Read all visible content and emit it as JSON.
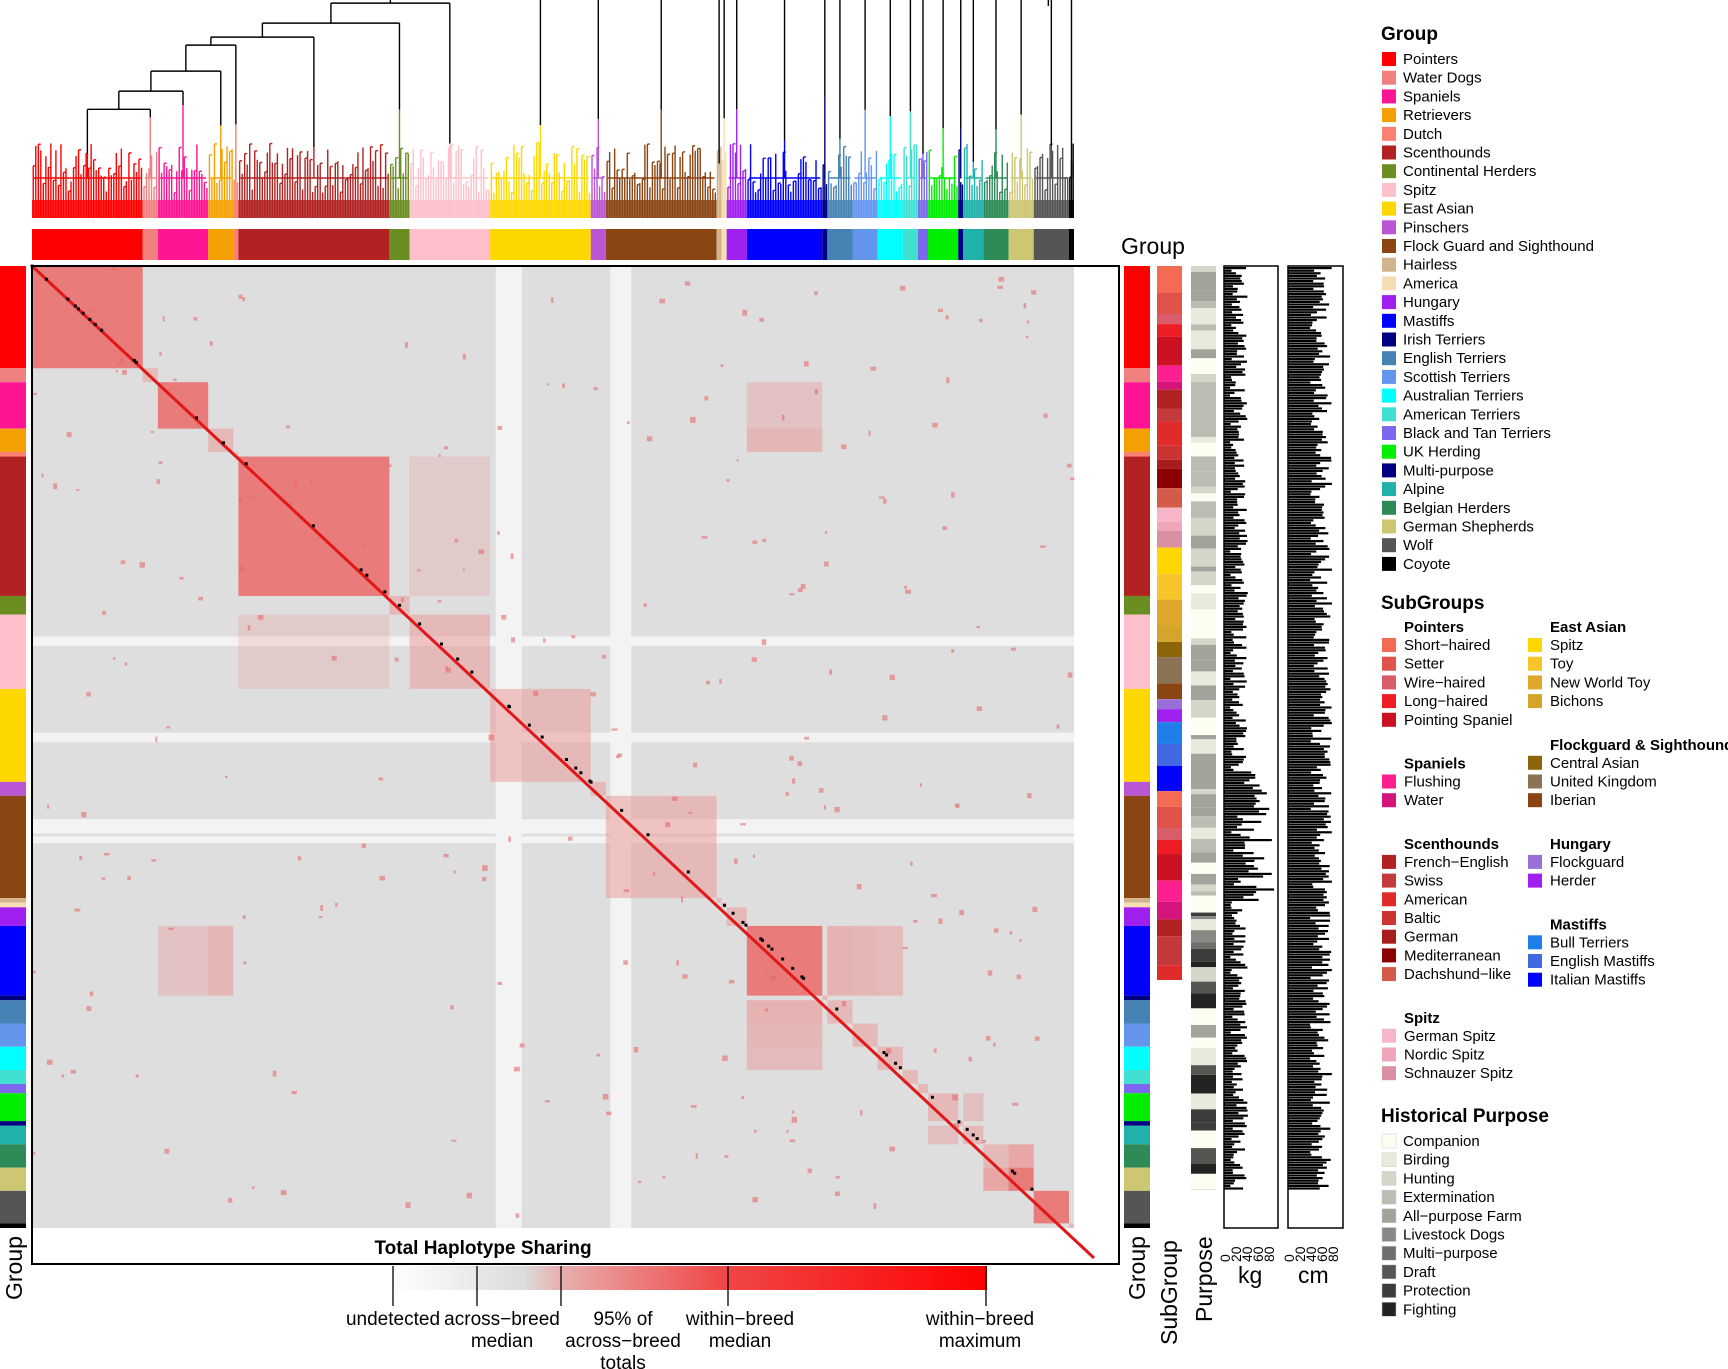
{
  "chart_data": {
    "type": "heatmap",
    "title": "Total Haplotype Sharing",
    "row_label": "Group",
    "top_label": "Group",
    "side_labels": {
      "group": "Group",
      "subgroup": "SubGroup",
      "purpose": "Purpose",
      "kg": "kg",
      "cm": "cm"
    },
    "kg_ticks": [
      "0",
      "20",
      "40",
      "60",
      "80"
    ],
    "cm_ticks": [
      "0",
      "20",
      "40",
      "60",
      "80"
    ],
    "colorbar": {
      "labels": [
        {
          "text": "undetected",
          "lines": [
            "undetected"
          ]
        },
        {
          "text": "across-breed median",
          "lines": [
            "across−breed",
            "median"
          ]
        },
        {
          "text": "95% of across-breed totals",
          "lines": [
            "95% of",
            "across−breed",
            "totals"
          ]
        },
        {
          "text": "within-breed median",
          "lines": [
            "within−breed",
            "median"
          ]
        },
        {
          "text": "within-breed maximum",
          "lines": [
            "within−breed",
            "maximum"
          ]
        }
      ]
    },
    "groups": [
      {
        "name": "Pointers",
        "color": "#ff0000",
        "size": 22
      },
      {
        "name": "Water Dogs",
        "color": "#f08080",
        "size": 3
      },
      {
        "name": "Spaniels",
        "color": "#ff1493",
        "size": 10
      },
      {
        "name": "Retrievers",
        "color": "#f4a000",
        "size": 5
      },
      {
        "name": "Dutch",
        "color": "#fa8072",
        "size": 1
      },
      {
        "name": "Scenthounds",
        "color": "#b22222",
        "size": 30
      },
      {
        "name": "Continental Herders",
        "color": "#6b8e23",
        "size": 4
      },
      {
        "name": "Spitz",
        "color": "#ffc0cb",
        "size": 16
      },
      {
        "name": "East Asian",
        "color": "#ffd700",
        "size": 20
      },
      {
        "name": "Pinschers",
        "color": "#ba55d3",
        "size": 3
      },
      {
        "name": "Flock Guard and Sighthound",
        "color": "#8b4513",
        "size": 22
      },
      {
        "name": "Hairless",
        "color": "#d2b48c",
        "size": 1
      },
      {
        "name": "America",
        "color": "#f5deb3",
        "size": 1
      },
      {
        "name": "Hungary",
        "color": "#a020f0",
        "size": 4
      },
      {
        "name": "Mastiffs",
        "color": "#0000ff",
        "size": 15
      },
      {
        "name": "Irish Terriers",
        "color": "#000080",
        "size": 1
      },
      {
        "name": "English Terriers",
        "color": "#4682b4",
        "size": 5
      },
      {
        "name": "Scottish Terriers",
        "color": "#6495ed",
        "size": 5
      },
      {
        "name": "Australian Terriers",
        "color": "#00ffff",
        "size": 5
      },
      {
        "name": "American Terriers",
        "color": "#40e0d0",
        "size": 3
      },
      {
        "name": "Black and Tan Terriers",
        "color": "#7b68ee",
        "size": 2
      },
      {
        "name": "UK Herding",
        "color": "#00ee00",
        "size": 6
      },
      {
        "name": "Multi-purpose",
        "color": "#000080",
        "size": 1
      },
      {
        "name": "Alpine",
        "color": "#20b2aa",
        "size": 4
      },
      {
        "name": "Belgian Herders",
        "color": "#2e8b57",
        "size": 5
      },
      {
        "name": "German Shepherds",
        "color": "#cdc673",
        "size": 5
      },
      {
        "name": "Wolf",
        "color": "#555555",
        "size": 7
      },
      {
        "name": "Coyote",
        "color": "#000000",
        "size": 1
      }
    ]
  },
  "legend": {
    "group_title": "Group",
    "subgroups_title": "SubGroups",
    "subgroups_left": [
      {
        "title": "Pointers",
        "items": [
          {
            "label": "Short−haired",
            "color": "#f26b52"
          },
          {
            "label": "Setter",
            "color": "#e0524a"
          },
          {
            "label": "Wire−haired",
            "color": "#d95c6a"
          },
          {
            "label": "Long−haired",
            "color": "#ee1c25"
          },
          {
            "label": "Pointing Spaniel",
            "color": "#cc1122"
          }
        ]
      },
      {
        "title": "Spaniels",
        "items": [
          {
            "label": "Flushing",
            "color": "#ff1f8e"
          },
          {
            "label": "Water",
            "color": "#d6157c"
          }
        ]
      },
      {
        "title": "Scenthounds",
        "items": [
          {
            "label": "French−English",
            "color": "#b22222"
          },
          {
            "label": "Swiss",
            "color": "#c43a3a"
          },
          {
            "label": "American",
            "color": "#e02b2b"
          },
          {
            "label": "Baltic",
            "color": "#cc3333"
          },
          {
            "label": "German",
            "color": "#a81c1c"
          },
          {
            "label": "Mediterranean",
            "color": "#8b0000"
          },
          {
            "label": "Dachshund−like",
            "color": "#d45a4a"
          }
        ]
      },
      {
        "title": "Spitz",
        "items": [
          {
            "label": "German Spitz",
            "color": "#f7b6c8"
          },
          {
            "label": "Nordic Spitz",
            "color": "#eea6b8"
          },
          {
            "label": "Schnauzer Spitz",
            "color": "#d990a2"
          }
        ]
      }
    ],
    "subgroups_right": [
      {
        "title": "East Asian",
        "items": [
          {
            "label": "Spitz",
            "color": "#ffd700"
          },
          {
            "label": "Toy",
            "color": "#f7c42a"
          },
          {
            "label": "New World Toy",
            "color": "#e0a82a"
          },
          {
            "label": "Bichons",
            "color": "#d4a52a"
          }
        ]
      },
      {
        "title": "Flockguard & Sighthounds",
        "items": [
          {
            "label": "Central Asian",
            "color": "#8b6508"
          },
          {
            "label": "United Kingdom",
            "color": "#8b7355"
          },
          {
            "label": "Iberian",
            "color": "#8b4513"
          }
        ]
      },
      {
        "title": "Hungary",
        "items": [
          {
            "label": "Flockguard",
            "color": "#9a70d8"
          },
          {
            "label": "Herder",
            "color": "#a020f0"
          }
        ]
      },
      {
        "title": "Mastiffs",
        "items": [
          {
            "label": "Bull Terriers",
            "color": "#1e7fe8"
          },
          {
            "label": "English Mastiffs",
            "color": "#4169e1"
          },
          {
            "label": "Italian Mastiffs",
            "color": "#0000ff"
          }
        ]
      }
    ],
    "purpose_title": "Historical Purpose",
    "purposes": [
      {
        "label": "Companion",
        "color": "#fdfdf2"
      },
      {
        "label": "Birding",
        "color": "#e8eadc"
      },
      {
        "label": "Hunting",
        "color": "#d4d6c8"
      },
      {
        "label": "Extermination",
        "color": "#bcbdb2"
      },
      {
        "label": "All−purpose Farm",
        "color": "#a2a39a"
      },
      {
        "label": "Livestock Dogs",
        "color": "#888984"
      },
      {
        "label": "Multi−purpose",
        "color": "#6e6f6a"
      },
      {
        "label": "Draft",
        "color": "#555552"
      },
      {
        "label": "Protection",
        "color": "#3c3c3a"
      },
      {
        "label": "Fighting",
        "color": "#232322"
      }
    ]
  }
}
